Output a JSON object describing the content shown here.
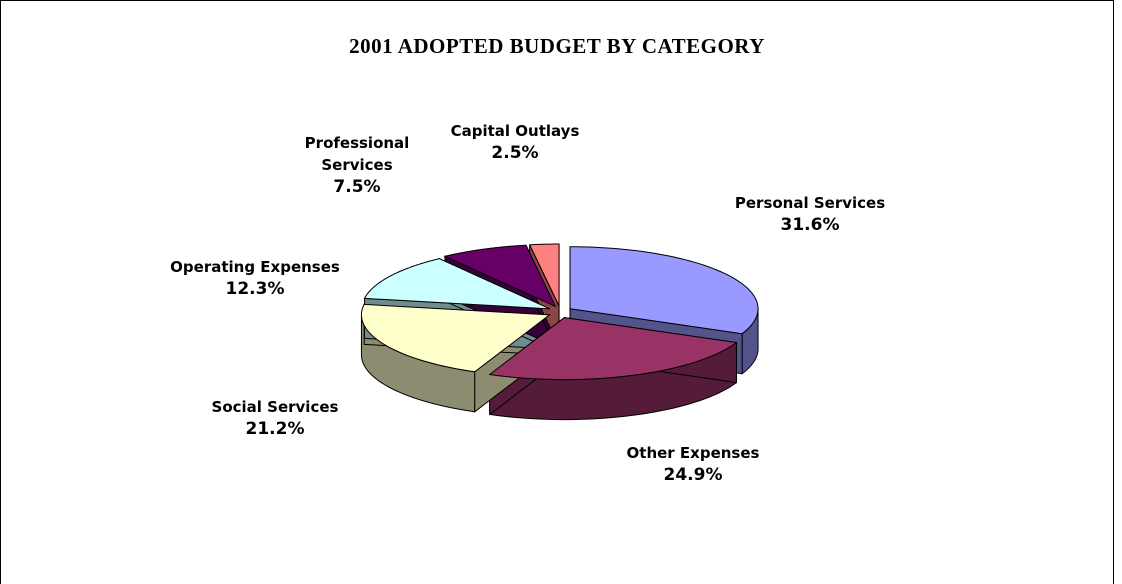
{
  "chart_data": {
    "type": "pie3d",
    "title": "2001 ADOPTED BUDGET BY CATEGORY",
    "categories": [
      "Personal Services",
      "Other Expenses",
      "Social Services",
      "Operating Expenses",
      "Professional Services",
      "Capital Outlays"
    ],
    "values": [
      31.6,
      24.9,
      21.2,
      12.3,
      7.5,
      2.5
    ],
    "value_labels": [
      "31.6%",
      "24.9%",
      "21.2%",
      "12.3%",
      "7.5%",
      "2.5%"
    ],
    "colors": [
      "#9999ff",
      "#993366",
      "#ffffcc",
      "#ccffff",
      "#660066",
      "#ff8080"
    ]
  }
}
